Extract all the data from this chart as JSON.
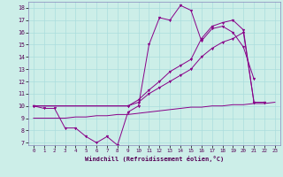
{
  "xlabel": "Windchill (Refroidissement éolien,°C)",
  "background_color": "#cceee8",
  "grid_color": "#aadddd",
  "line_color": "#880088",
  "spine_color": "#8888bb",
  "x_ticks": [
    0,
    1,
    2,
    3,
    4,
    5,
    6,
    7,
    8,
    9,
    10,
    11,
    12,
    13,
    14,
    15,
    16,
    17,
    18,
    19,
    20,
    21,
    22,
    23
  ],
  "y_ticks": [
    7,
    8,
    9,
    10,
    11,
    12,
    13,
    14,
    15,
    16,
    17,
    18
  ],
  "ylim": [
    6.8,
    18.5
  ],
  "xlim": [
    -0.5,
    23.5
  ],
  "series": [
    {
      "x": [
        0,
        1,
        2,
        3,
        4,
        5,
        6,
        7,
        8,
        9,
        10,
        11,
        12,
        13,
        14,
        15,
        16,
        17,
        18,
        19,
        20,
        21,
        22
      ],
      "y": [
        10,
        9.8,
        9.8,
        8.2,
        8.2,
        7.5,
        7.0,
        7.5,
        6.8,
        9.5,
        10.0,
        15.0,
        17.2,
        17.0,
        18.2,
        17.8,
        15.3,
        16.3,
        16.5,
        16.0,
        14.8,
        12.2,
        null
      ],
      "marker": true
    },
    {
      "x": [
        0,
        9,
        10,
        11,
        12,
        13,
        14,
        15,
        16,
        17,
        18,
        19,
        20,
        21,
        22
      ],
      "y": [
        10,
        10.0,
        10.5,
        11.3,
        12.0,
        12.8,
        13.3,
        13.8,
        15.5,
        16.5,
        16.8,
        17.0,
        16.2,
        10.3,
        10.3
      ],
      "marker": true
    },
    {
      "x": [
        0,
        9,
        10,
        11,
        12,
        13,
        14,
        15,
        16,
        17,
        18,
        19,
        20,
        21,
        22
      ],
      "y": [
        10,
        10.0,
        10.3,
        11.0,
        11.5,
        12.0,
        12.5,
        13.0,
        14.0,
        14.7,
        15.2,
        15.5,
        16.0,
        10.3,
        10.3
      ],
      "marker": true
    },
    {
      "x": [
        0,
        1,
        2,
        3,
        4,
        5,
        6,
        7,
        8,
        9,
        10,
        11,
        12,
        13,
        14,
        15,
        16,
        17,
        18,
        19,
        20,
        21,
        22,
        23
      ],
      "y": [
        9.0,
        9.0,
        9.0,
        9.0,
        9.1,
        9.1,
        9.2,
        9.2,
        9.3,
        9.3,
        9.4,
        9.5,
        9.6,
        9.7,
        9.8,
        9.9,
        9.9,
        10.0,
        10.0,
        10.1,
        10.1,
        10.2,
        10.2,
        10.3
      ],
      "marker": false
    }
  ]
}
